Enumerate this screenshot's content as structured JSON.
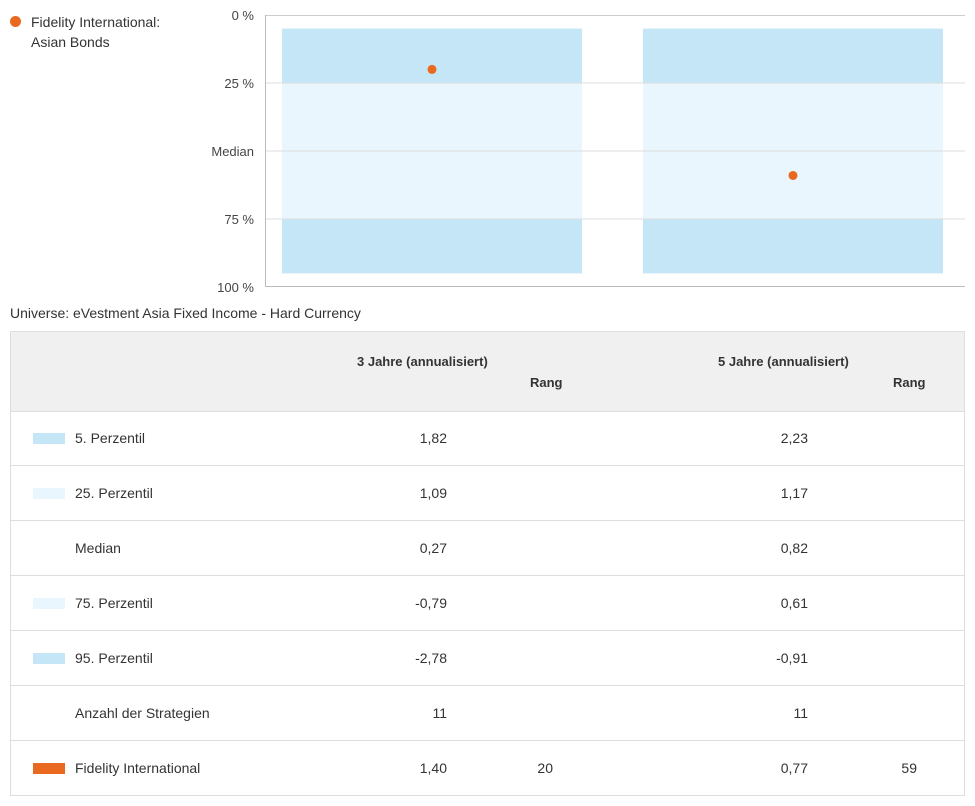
{
  "legend": {
    "line1": "Fidelity International:",
    "line2": "Asian Bonds",
    "color": "#e8691f"
  },
  "universe": "Universe: eVestment Asia Fixed Income - Hard Currency",
  "colors": {
    "outer_band": "#c4e6f6",
    "inner_band": "#e9f6fd",
    "marker": "#e8691f"
  },
  "chart_data": {
    "type": "floating-bar",
    "y_axis": {
      "ticks": [
        "0 %",
        "25 %",
        "Median",
        "75 %",
        "100 %"
      ],
      "tick_values": [
        0,
        25,
        50,
        75,
        100
      ],
      "range": [
        0,
        100
      ],
      "inverted": true
    },
    "grid": true,
    "legend_placement": "top-left",
    "bands_percentile": {
      "p5": 5,
      "p25": 25,
      "median": 50,
      "p75": 75,
      "p95": 95
    },
    "periods": [
      {
        "label": "3 Jahre (annualisiert)",
        "rank": 20
      },
      {
        "label": "5 Jahre (annualisiert)",
        "rank": 59
      }
    ]
  },
  "table": {
    "headers": {
      "period3": "3 Jahre (annualisiert)",
      "rank3": "Rang",
      "period5": "5 Jahre (annualisiert)",
      "rank5": "Rang"
    },
    "rows": [
      {
        "label": "5. Perzentil",
        "v3": "1,82",
        "r3": "",
        "v5": "2,23",
        "r5": "",
        "swatch": "outer"
      },
      {
        "label": "25. Perzentil",
        "v3": "1,09",
        "r3": "",
        "v5": "1,17",
        "r5": "",
        "swatch": "inner"
      },
      {
        "label": "Median",
        "v3": "0,27",
        "r3": "",
        "v5": "0,82",
        "r5": "",
        "swatch": "none"
      },
      {
        "label": "75. Perzentil",
        "v3": "-0,79",
        "r3": "",
        "v5": "0,61",
        "r5": "",
        "swatch": "inner"
      },
      {
        "label": "95. Perzentil",
        "v3": "-2,78",
        "r3": "",
        "v5": "-0,91",
        "r5": "",
        "swatch": "outer"
      },
      {
        "label": "Anzahl der Strategien",
        "v3": "11",
        "r3": "",
        "v5": "11",
        "r5": "",
        "swatch": "none"
      },
      {
        "label": "Fidelity International",
        "v3": "1,40",
        "r3": "20",
        "v5": "0,77",
        "r5": "59",
        "swatch": "fund"
      }
    ]
  }
}
